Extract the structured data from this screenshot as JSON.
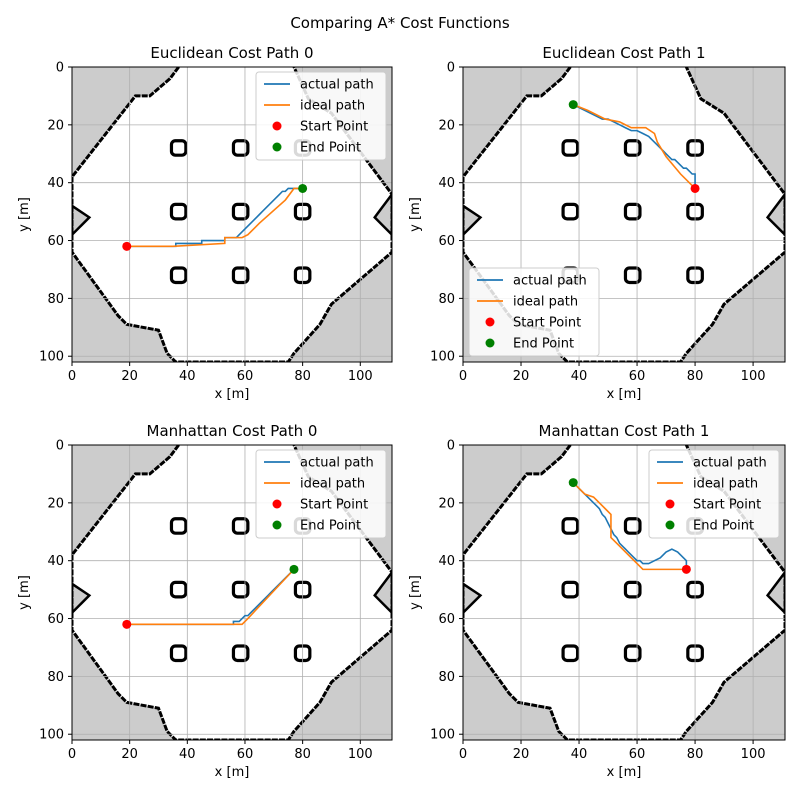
{
  "figure": {
    "title": "Comparing A* Cost Functions"
  },
  "colors": {
    "actual": "#1f77b4",
    "ideal": "#ff7f0e",
    "start": "#ff0000",
    "end": "#008000",
    "obstacle": "#000000",
    "outside": "#cccccc",
    "free": "#ffffff",
    "grid": "#b0b0b0"
  },
  "chart_data": [
    {
      "type": "line",
      "title": "Euclidean Cost Path 0",
      "xlabel": "x [m]",
      "ylabel": "y [m]",
      "xlim": [
        0,
        111
      ],
      "ylim": [
        102,
        0
      ],
      "xticks": [
        0,
        20,
        40,
        60,
        80,
        100
      ],
      "yticks": [
        0,
        20,
        40,
        60,
        80,
        100
      ],
      "grid": true,
      "legend": "top-right",
      "legend_labels": {
        "actual": "actual path",
        "ideal": "ideal path",
        "start": "Start Point",
        "end": "End Point"
      },
      "actual_path": {
        "x": [
          19,
          36,
          36,
          45,
          45,
          53,
          53,
          57,
          58,
          59,
          60,
          61,
          62,
          63,
          64,
          65,
          66,
          67,
          68,
          69,
          70,
          71,
          72,
          73,
          74,
          75,
          76,
          77,
          78,
          79,
          80
        ],
        "y": [
          62,
          62,
          61,
          61,
          60,
          60,
          59,
          59,
          58,
          57,
          56,
          55,
          54,
          53,
          52,
          51,
          50,
          49,
          48,
          47,
          46,
          45,
          44,
          43,
          43,
          42,
          42,
          42,
          42,
          42,
          42
        ]
      },
      "ideal_path": {
        "x": [
          19,
          35,
          53,
          53,
          59,
          61,
          65,
          74,
          77,
          80
        ],
        "y": [
          62,
          62,
          61,
          59,
          59,
          58,
          54,
          46,
          42,
          42
        ]
      },
      "start": {
        "x": 19,
        "y": 62
      },
      "end": {
        "x": 80,
        "y": 42
      }
    },
    {
      "type": "line",
      "title": "Euclidean Cost Path 1",
      "xlabel": "x [m]",
      "ylabel": "y [m]",
      "xlim": [
        0,
        111
      ],
      "ylim": [
        102,
        0
      ],
      "xticks": [
        0,
        20,
        40,
        60,
        80,
        100
      ],
      "yticks": [
        0,
        20,
        40,
        60,
        80,
        100
      ],
      "grid": true,
      "legend": "lower-left",
      "legend_labels": {
        "actual": "actual path",
        "ideal": "ideal path",
        "start": "Start Point",
        "end": "End Point"
      },
      "actual_path": {
        "x": [
          38,
          40,
          42,
          44,
          46,
          48,
          50,
          52,
          54,
          56,
          58,
          60,
          62,
          64,
          65,
          66,
          67,
          68,
          69,
          70,
          71,
          72,
          73,
          74,
          75,
          76,
          77,
          78,
          79,
          80,
          80
        ],
        "y": [
          13,
          14,
          15,
          16,
          17,
          18,
          18,
          19,
          20,
          21,
          22,
          22,
          23,
          24,
          25,
          26,
          27,
          28,
          29,
          30,
          31,
          32,
          32,
          33,
          34,
          35,
          35,
          36,
          37,
          37,
          42
        ]
      },
      "ideal_path": {
        "x": [
          38,
          43,
          49,
          54,
          58,
          63,
          66,
          67,
          70,
          75,
          80
        ],
        "y": [
          13,
          15,
          18,
          19,
          21,
          21,
          23,
          26,
          31,
          37,
          42
        ]
      },
      "start": {
        "x": 80,
        "y": 42
      },
      "end": {
        "x": 38,
        "y": 13
      }
    },
    {
      "type": "line",
      "title": "Manhattan Cost Path 0",
      "xlabel": "x [m]",
      "ylabel": "y [m]",
      "xlim": [
        0,
        111
      ],
      "ylim": [
        102,
        0
      ],
      "xticks": [
        0,
        20,
        40,
        60,
        80,
        100
      ],
      "yticks": [
        0,
        20,
        40,
        60,
        80,
        100
      ],
      "grid": true,
      "legend": "top-right",
      "legend_labels": {
        "actual": "actual path",
        "ideal": "ideal path",
        "start": "Start Point",
        "end": "End Point"
      },
      "actual_path": {
        "x": [
          19,
          56,
          56,
          58,
          59,
          60,
          61,
          62,
          63,
          64,
          65,
          66,
          67,
          68,
          69,
          70,
          71,
          72,
          73,
          74,
          75,
          76,
          77
        ],
        "y": [
          62,
          62,
          61,
          61,
          60,
          59,
          59,
          58,
          57,
          56,
          55,
          54,
          53,
          52,
          51,
          50,
          49,
          48,
          47,
          46,
          45,
          44,
          43
        ]
      },
      "ideal_path": {
        "x": [
          19,
          59,
          61,
          77
        ],
        "y": [
          62,
          62,
          60,
          43
        ]
      },
      "start": {
        "x": 19,
        "y": 62
      },
      "end": {
        "x": 77,
        "y": 43
      }
    },
    {
      "type": "line",
      "title": "Manhattan Cost Path 1",
      "xlabel": "x [m]",
      "ylabel": "y [m]",
      "xlim": [
        0,
        111
      ],
      "ylim": [
        102,
        0
      ],
      "xticks": [
        0,
        20,
        40,
        60,
        80,
        100
      ],
      "yticks": [
        0,
        20,
        40,
        60,
        80,
        100
      ],
      "grid": true,
      "legend": "top-right",
      "legend_labels": {
        "actual": "actual path",
        "ideal": "ideal path",
        "start": "Start Point",
        "end": "End Point"
      },
      "actual_path": {
        "x": [
          38,
          39,
          40,
          41,
          42,
          43,
          44,
          45,
          46,
          47,
          48,
          49,
          50,
          51,
          52,
          53,
          54,
          55,
          56,
          57,
          58,
          59,
          60,
          61,
          62,
          64,
          66,
          68,
          70,
          72,
          74,
          75,
          76,
          77,
          77
        ],
        "y": [
          13,
          14,
          15,
          16,
          17,
          18,
          19,
          20,
          21,
          22,
          24,
          25,
          27,
          29,
          31,
          32,
          34,
          35,
          36,
          37,
          38,
          39,
          40,
          40,
          41,
          41,
          40,
          39,
          37,
          36,
          37,
          38,
          39,
          40,
          43
        ]
      },
      "ideal_path": {
        "x": [
          38,
          42,
          45,
          49,
          51,
          51,
          54,
          58,
          62,
          66,
          77
        ],
        "y": [
          13,
          17,
          18,
          22,
          24,
          32,
          35,
          39,
          43,
          43,
          43
        ]
      },
      "start": {
        "x": 77,
        "y": 43
      },
      "end": {
        "x": 38,
        "y": 13
      }
    }
  ]
}
